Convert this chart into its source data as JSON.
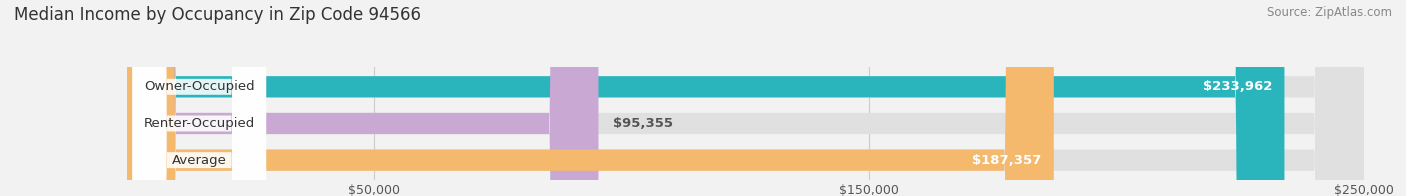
{
  "title": "Median Income by Occupancy in Zip Code 94566",
  "source": "Source: ZipAtlas.com",
  "categories": [
    "Owner-Occupied",
    "Renter-Occupied",
    "Average"
  ],
  "values": [
    233962,
    95355,
    187357
  ],
  "bar_colors": [
    "#2ab5bc",
    "#c9a8d4",
    "#f5b96e"
  ],
  "value_labels": [
    "$233,962",
    "$95,355",
    "$187,357"
  ],
  "value_inside": [
    true,
    false,
    true
  ],
  "xlim": [
    0,
    250000
  ],
  "xticks": [
    50000,
    150000,
    250000
  ],
  "xtick_labels": [
    "$50,000",
    "$150,000",
    "$250,000"
  ],
  "background_color": "#f2f2f2",
  "bar_bg_color": "#e0e0e0",
  "title_fontsize": 12,
  "source_fontsize": 8.5,
  "label_fontsize": 9.5,
  "value_fontsize": 9.5,
  "bar_height": 0.58,
  "figsize": [
    14.06,
    1.96
  ]
}
